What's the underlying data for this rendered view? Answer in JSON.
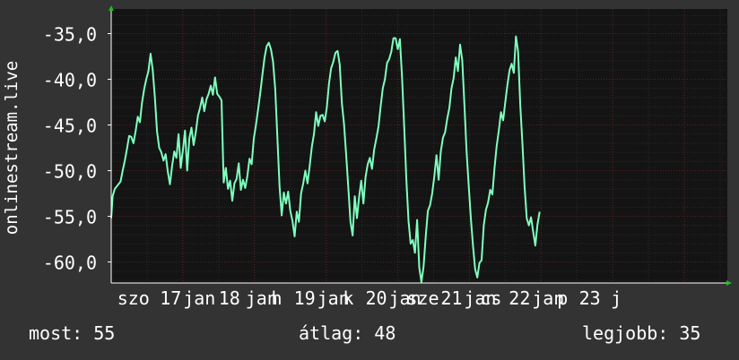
{
  "chart_data": {
    "type": "line",
    "title": "",
    "ylabel": "onlinestream.live",
    "xlabel": "",
    "ylim": [
      -62.3,
      -32.3
    ],
    "xlim": [
      0,
      8.6
    ],
    "y_ticks": [
      -60,
      -55,
      -50,
      -45,
      -40,
      -35
    ],
    "y_tick_labels": [
      "-60,0",
      "-55,0",
      "-50,0",
      "-45,0",
      "-40,0",
      "-35,0"
    ],
    "x_ticks": [
      {
        "label": "szo",
        "x": 0.31
      },
      {
        "label": "17",
        "x": 0.83
      },
      {
        "label": "jan",
        "x": 1.23
      },
      {
        "label": "18",
        "x": 1.65
      },
      {
        "label": "jan",
        "x": 2.1
      },
      {
        "label": "h",
        "x": 2.31
      },
      {
        "label": "19",
        "x": 2.7
      },
      {
        "label": "jan",
        "x": 3.1
      },
      {
        "label": "k",
        "x": 3.31
      },
      {
        "label": "20",
        "x": 3.7
      },
      {
        "label": "jan",
        "x": 4.1
      },
      {
        "label": "sze",
        "x": 4.35
      },
      {
        "label": "21",
        "x": 4.75
      },
      {
        "label": "jan",
        "x": 5.15
      },
      {
        "label": "cs",
        "x": 5.3
      },
      {
        "label": "22",
        "x": 5.7
      },
      {
        "label": "jan",
        "x": 6.1
      },
      {
        "label": "p",
        "x": 6.3
      },
      {
        "label": "23",
        "x": 6.68
      },
      {
        "label": "j",
        "x": 7.05
      }
    ],
    "grid": true,
    "colors": {
      "line": "#7fffbf",
      "background": "#333333",
      "plot_background": "#141414",
      "grid": "#5a2020",
      "axis": "#ffffff",
      "arrow": "#22bb22"
    },
    "series": [
      {
        "values": [
          [
            0.0,
            -55.2
          ],
          [
            0.02,
            -52.8
          ],
          [
            0.05,
            -52.0
          ],
          [
            0.09,
            -51.6
          ],
          [
            0.13,
            -51.2
          ],
          [
            0.16,
            -50.0
          ],
          [
            0.19,
            -48.9
          ],
          [
            0.22,
            -47.6
          ],
          [
            0.25,
            -46.2
          ],
          [
            0.28,
            -46.3
          ],
          [
            0.31,
            -47.0
          ],
          [
            0.34,
            -45.7
          ],
          [
            0.37,
            -44.1
          ],
          [
            0.4,
            -44.7
          ],
          [
            0.43,
            -42.6
          ],
          [
            0.46,
            -41.1
          ],
          [
            0.49,
            -40.0
          ],
          [
            0.52,
            -39.1
          ],
          [
            0.55,
            -37.2
          ],
          [
            0.58,
            -39.0
          ],
          [
            0.61,
            -42.0
          ],
          [
            0.64,
            -45.7
          ],
          [
            0.67,
            -47.5
          ],
          [
            0.7,
            -48.0
          ],
          [
            0.73,
            -48.9
          ],
          [
            0.76,
            -48.2
          ],
          [
            0.79,
            -50.1
          ],
          [
            0.82,
            -51.5
          ],
          [
            0.85,
            -49.5
          ],
          [
            0.88,
            -47.9
          ],
          [
            0.91,
            -48.6
          ],
          [
            0.94,
            -46.0
          ],
          [
            0.97,
            -49.7
          ],
          [
            1.0,
            -47.8
          ],
          [
            1.03,
            -45.6
          ],
          [
            1.06,
            -50.0
          ],
          [
            1.09,
            -46.5
          ],
          [
            1.12,
            -45.3
          ],
          [
            1.15,
            -47.2
          ],
          [
            1.18,
            -45.8
          ],
          [
            1.21,
            -44.0
          ],
          [
            1.24,
            -43.1
          ],
          [
            1.27,
            -42.0
          ],
          [
            1.3,
            -43.5
          ],
          [
            1.33,
            -42.2
          ],
          [
            1.36,
            -41.6
          ],
          [
            1.39,
            -40.7
          ],
          [
            1.42,
            -41.7
          ],
          [
            1.45,
            -39.8
          ],
          [
            1.48,
            -41.6
          ],
          [
            1.51,
            -41.9
          ],
          [
            1.54,
            -42.3
          ],
          [
            1.57,
            -51.3
          ],
          [
            1.6,
            -49.7
          ],
          [
            1.63,
            -52.0
          ],
          [
            1.66,
            -51.1
          ],
          [
            1.69,
            -53.3
          ],
          [
            1.72,
            -51.4
          ],
          [
            1.75,
            -50.9
          ],
          [
            1.78,
            -49.2
          ],
          [
            1.81,
            -52.1
          ],
          [
            1.84,
            -51.0
          ],
          [
            1.87,
            -51.9
          ],
          [
            1.9,
            -50.6
          ],
          [
            1.93,
            -48.7
          ],
          [
            1.96,
            -49.3
          ],
          [
            1.99,
            -46.5
          ],
          [
            2.02,
            -45.0
          ],
          [
            2.05,
            -43.3
          ],
          [
            2.08,
            -41.5
          ],
          [
            2.11,
            -39.5
          ],
          [
            2.14,
            -37.6
          ],
          [
            2.17,
            -36.4
          ],
          [
            2.2,
            -36.0
          ],
          [
            2.23,
            -36.7
          ],
          [
            2.26,
            -38.1
          ],
          [
            2.29,
            -41.1
          ],
          [
            2.32,
            -46.4
          ],
          [
            2.35,
            -51.7
          ],
          [
            2.38,
            -54.9
          ],
          [
            2.41,
            -52.4
          ],
          [
            2.44,
            -53.6
          ],
          [
            2.47,
            -52.3
          ],
          [
            2.5,
            -54.4
          ],
          [
            2.53,
            -55.5
          ],
          [
            2.56,
            -57.2
          ],
          [
            2.59,
            -54.5
          ],
          [
            2.62,
            -55.6
          ],
          [
            2.65,
            -52.5
          ],
          [
            2.68,
            -51.4
          ],
          [
            2.71,
            -50.0
          ],
          [
            2.74,
            -51.4
          ],
          [
            2.77,
            -49.5
          ],
          [
            2.8,
            -47.4
          ],
          [
            2.83,
            -46.0
          ],
          [
            2.86,
            -43.6
          ],
          [
            2.89,
            -45.1
          ],
          [
            2.92,
            -44.0
          ],
          [
            2.95,
            -43.9
          ],
          [
            2.98,
            -44.6
          ],
          [
            3.01,
            -43.1
          ],
          [
            3.04,
            -40.5
          ],
          [
            3.07,
            -38.8
          ],
          [
            3.1,
            -38.1
          ],
          [
            3.13,
            -37.1
          ],
          [
            3.16,
            -36.9
          ],
          [
            3.19,
            -38.4
          ],
          [
            3.22,
            -42.6
          ],
          [
            3.25,
            -44.9
          ],
          [
            3.28,
            -48.3
          ],
          [
            3.31,
            -51.9
          ],
          [
            3.34,
            -55.6
          ],
          [
            3.37,
            -57.1
          ],
          [
            3.4,
            -52.8
          ],
          [
            3.43,
            -55.2
          ],
          [
            3.46,
            -52.9
          ],
          [
            3.49,
            -51.1
          ],
          [
            3.52,
            -53.6
          ],
          [
            3.55,
            -50.7
          ],
          [
            3.58,
            -49.3
          ],
          [
            3.61,
            -48.6
          ],
          [
            3.64,
            -49.8
          ],
          [
            3.67,
            -47.7
          ],
          [
            3.7,
            -46.5
          ],
          [
            3.73,
            -45.2
          ],
          [
            3.76,
            -43.0
          ],
          [
            3.79,
            -41.0
          ],
          [
            3.82,
            -40.0
          ],
          [
            3.85,
            -38.2
          ],
          [
            3.88,
            -37.8
          ],
          [
            3.91,
            -37.0
          ],
          [
            3.94,
            -35.5
          ],
          [
            3.97,
            -35.5
          ],
          [
            4.0,
            -36.7
          ],
          [
            4.03,
            -35.6
          ],
          [
            4.06,
            -39.8
          ],
          [
            4.09,
            -45.2
          ],
          [
            4.12,
            -51.0
          ],
          [
            4.15,
            -55.5
          ],
          [
            4.18,
            -58.0
          ],
          [
            4.21,
            -57.6
          ],
          [
            4.24,
            -59.0
          ],
          [
            4.27,
            -55.4
          ],
          [
            4.3,
            -60.6
          ],
          [
            4.33,
            -62.2
          ],
          [
            4.36,
            -60.5
          ],
          [
            4.39,
            -57.2
          ],
          [
            4.42,
            -54.4
          ],
          [
            4.45,
            -53.8
          ],
          [
            4.48,
            -52.5
          ],
          [
            4.51,
            -50.6
          ],
          [
            4.54,
            -48.3
          ],
          [
            4.57,
            -51.0
          ],
          [
            4.6,
            -47.9
          ],
          [
            4.63,
            -46.4
          ],
          [
            4.66,
            -45.8
          ],
          [
            4.69,
            -44.3
          ],
          [
            4.72,
            -43.1
          ],
          [
            4.75,
            -41.0
          ],
          [
            4.78,
            -39.9
          ],
          [
            4.81,
            -37.6
          ],
          [
            4.84,
            -39.1
          ],
          [
            4.87,
            -36.2
          ],
          [
            4.9,
            -37.9
          ],
          [
            4.93,
            -42.7
          ],
          [
            4.96,
            -47.8
          ],
          [
            4.99,
            -51.6
          ],
          [
            5.02,
            -55.2
          ],
          [
            5.05,
            -58.2
          ],
          [
            5.08,
            -60.8
          ],
          [
            5.11,
            -61.7
          ],
          [
            5.14,
            -60.1
          ],
          [
            5.17,
            -59.8
          ],
          [
            5.2,
            -56.0
          ],
          [
            5.23,
            -54.3
          ],
          [
            5.26,
            -53.5
          ],
          [
            5.29,
            -52.1
          ],
          [
            5.32,
            -52.6
          ],
          [
            5.35,
            -49.7
          ],
          [
            5.38,
            -47.3
          ],
          [
            5.41,
            -45.6
          ],
          [
            5.44,
            -43.6
          ],
          [
            5.47,
            -44.5
          ],
          [
            5.5,
            -42.5
          ],
          [
            5.53,
            -40.6
          ],
          [
            5.56,
            -39.0
          ],
          [
            5.59,
            -38.3
          ],
          [
            5.62,
            -39.3
          ],
          [
            5.65,
            -35.3
          ],
          [
            5.68,
            -37.0
          ],
          [
            5.71,
            -42.8
          ],
          [
            5.74,
            -47.0
          ],
          [
            5.77,
            -51.7
          ],
          [
            5.8,
            -55.2
          ],
          [
            5.83,
            -56.0
          ],
          [
            5.86,
            -55.1
          ],
          [
            5.89,
            -56.7
          ],
          [
            5.92,
            -58.2
          ],
          [
            5.95,
            -55.9
          ],
          [
            5.98,
            -54.5
          ]
        ]
      }
    ]
  },
  "footer": {
    "now": "most: 55",
    "avg": "átlag: 48",
    "best": "legjobb: 35"
  }
}
